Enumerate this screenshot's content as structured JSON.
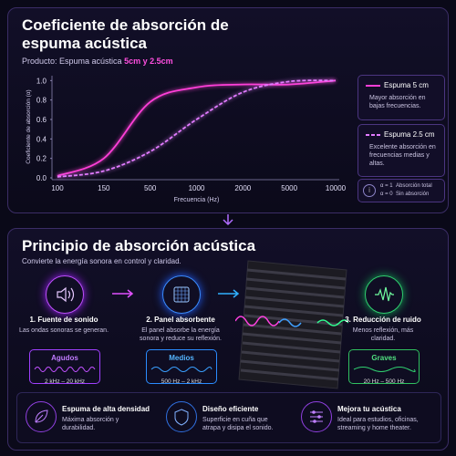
{
  "chart_data": {
    "type": "line",
    "title": "Coeficiente de absorción de espuma acústica",
    "subtitle": [
      "Producto: Espuma acústica",
      "5cm y 2.5cm"
    ],
    "x_label": "Frecuencia (Hz)",
    "y_label": "Coeficiente de absorción (α)",
    "categories": [
      "100",
      "150",
      "500",
      "1000",
      "2000",
      "5000",
      "10000"
    ],
    "series": [
      {
        "name": "Espuma 5 cm",
        "color": "#ff3fd8",
        "dash": false,
        "description": "Mayor absorción en bajas frecuencias.",
        "values": [
          0.02,
          0.2,
          0.78,
          0.93,
          0.96,
          0.96,
          1.0
        ]
      },
      {
        "name": "Espuma 2.5 cm",
        "color": "#e27bff",
        "dash": true,
        "description": "Excelente absorción en frecuencias medias y altas.",
        "values": [
          0.01,
          0.07,
          0.27,
          0.6,
          0.88,
          0.99,
          1.0
        ]
      }
    ],
    "ylim": [
      0,
      1.05
    ],
    "yticks": [
      {
        "value": 0,
        "label": "0.0"
      },
      0.2,
      0.4,
      0.6,
      0.8,
      {
        "value": 1,
        "label": "1.0"
      }
    ],
    "alpha_notes": [
      {
        "symbol": "α = 1",
        "text": "Absorción total"
      },
      {
        "symbol": "α = 0",
        "text": "Sin absorción"
      }
    ],
    "grid": false
  },
  "principle": {
    "title": "Principio de absorción acústica",
    "subtitle": "Convierte la energía sonora en control y claridad.",
    "steps": [
      {
        "title": "1. Fuente de sonido",
        "text": "Las ondas sonoras se generan.",
        "band": "Agudos",
        "range": "2 kHz – 20 kHz"
      },
      {
        "title": "2. Panel absorbente",
        "text": "El panel absorbe la energía sonora y reduce su reflexión.",
        "band": "Medios",
        "range": "500 Hz – 2 kHz"
      },
      {
        "title": "3. Reducción de ruido",
        "text": "Menos reflexión, más claridad.",
        "band": "Graves",
        "range": "20 Hz – 500 Hz"
      }
    ],
    "features": [
      {
        "title": "Espuma de alta densidad",
        "text": "Máxima absorción y durabilidad."
      },
      {
        "title": "Diseño eficiente",
        "text": "Superficie en cuña que atrapa y disipa el sonido."
      },
      {
        "title": "Mejora tu acústica",
        "text": "Ideal para estudios, oficinas, streaming y home theater."
      }
    ]
  }
}
